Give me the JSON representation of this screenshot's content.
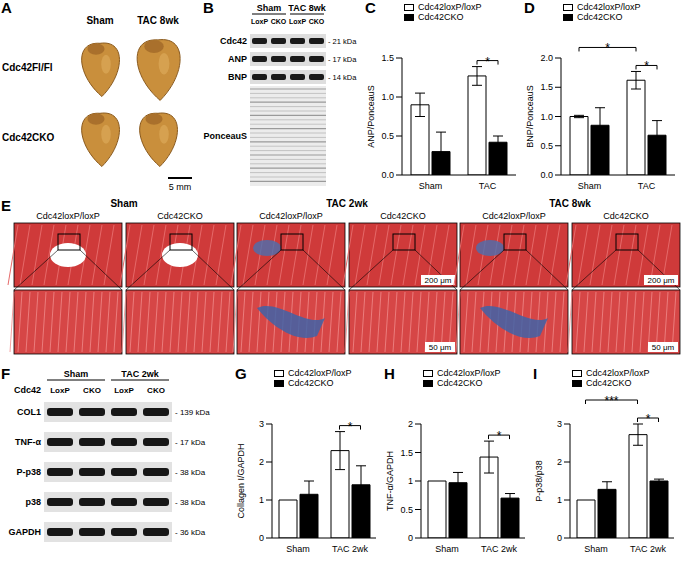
{
  "panels": {
    "A": {
      "panel": "A",
      "columns": [
        "Sham",
        "TAC 8wk"
      ],
      "rows": [
        "Cdc42Fl/Fl",
        "Cdc42CKO"
      ],
      "scale_bar": "5 mm"
    },
    "B": {
      "panel": "B",
      "groups": [
        "Sham",
        "TAC 8wk"
      ],
      "lanes": [
        "LoxP",
        "CKO",
        "LoxP",
        "CKO"
      ],
      "bands": [
        {
          "name": "Cdc42",
          "size": "- 21 kDa"
        },
        {
          "name": "ANP",
          "size": "- 17 kDa"
        },
        {
          "name": "BNP",
          "size": "- 14 kDa"
        },
        {
          "name": "PonceauS"
        }
      ]
    },
    "E": {
      "panel": "E",
      "groups": [
        {
          "title": "Sham",
          "columns": [
            "Cdc42loxP/loxP",
            "Cdc42CKO"
          ]
        },
        {
          "title": "TAC 2wk",
          "columns": [
            "Cdc42loxP/loxP",
            "Cdc42CKO"
          ],
          "scale_bars": [
            "200 μm",
            "50 μm"
          ]
        },
        {
          "title": "TAC 8wk",
          "columns": [
            "Cdc42loxP/loxP",
            "Cdc42CKO"
          ],
          "scale_bars": [
            "200 μm",
            "50 μm"
          ]
        }
      ]
    },
    "F": {
      "panel": "F",
      "row_label": "Cdc42",
      "groups": [
        "Sham",
        "TAC 2wk"
      ],
      "lanes": [
        "LoxP",
        "CKO",
        "LoxP",
        "CKO"
      ],
      "bands": [
        {
          "name": "COL1",
          "size": "- 139 kDa"
        },
        {
          "name": "TNF-α",
          "size": "- 17 kDa"
        },
        {
          "name": "P-p38",
          "size": "- 38 kDa"
        },
        {
          "name": "p38",
          "size": "- 38 kDa"
        },
        {
          "name": "GAPDH",
          "size": "- 36 kDa"
        }
      ]
    }
  },
  "chart_data": [
    {
      "panel": "C",
      "type": "bar",
      "ylabel": "ANP/PonceauS",
      "categories": [
        "Sham",
        "TAC"
      ],
      "series": [
        {
          "name": "Cdc42loxP/loxP",
          "color": "#ffffff",
          "values": [
            0.9,
            1.27
          ],
          "errors": [
            0.15,
            0.12
          ]
        },
        {
          "name": "Cdc42CKO",
          "color": "#000000",
          "values": [
            0.3,
            0.42
          ],
          "errors": [
            0.25,
            0.08
          ]
        }
      ],
      "ylim": [
        0,
        1.5
      ],
      "yticks": [
        {
          "value": 0,
          "label": "0.0"
        },
        0.5,
        {
          "value": 1,
          "label": "1.0"
        },
        1.5
      ],
      "legend": "top",
      "significance": [
        {
          "bars": [
            [
              1,
              0
            ],
            [
              1,
              1
            ]
          ],
          "label": "*"
        }
      ]
    },
    {
      "panel": "D",
      "type": "bar",
      "ylabel": "BNP/PonceauS",
      "categories": [
        "Sham",
        "TAC"
      ],
      "series": [
        {
          "name": "Cdc42loxP/loxP",
          "color": "#ffffff",
          "values": [
            1.0,
            1.62
          ],
          "errors": [
            0.02,
            0.15
          ]
        },
        {
          "name": "Cdc42CKO",
          "color": "#000000",
          "values": [
            0.85,
            0.68
          ],
          "errors": [
            0.3,
            0.25
          ]
        }
      ],
      "ylim": [
        0,
        2
      ],
      "yticks": [
        {
          "value": 0,
          "label": "0.0"
        },
        0.5,
        {
          "value": 1,
          "label": "1.0"
        },
        1.5,
        {
          "value": 2,
          "label": "2.0"
        }
      ],
      "legend": "top",
      "significance": [
        {
          "bars": [
            [
              0,
              0
            ],
            [
              1,
              0
            ]
          ],
          "label": "*"
        },
        {
          "bars": [
            [
              1,
              0
            ],
            [
              1,
              1
            ]
          ],
          "label": "*"
        }
      ]
    },
    {
      "panel": "G",
      "type": "bar",
      "ylabel": "Collagen I/GAPDH",
      "categories": [
        "Sham",
        "TAC 2wk"
      ],
      "series": [
        {
          "name": "Cdc42loxP/loxP",
          "color": "#ffffff",
          "values": [
            1.0,
            2.3
          ],
          "errors": [
            0,
            0.5
          ]
        },
        {
          "name": "Cdc42CKO",
          "color": "#000000",
          "values": [
            1.15,
            1.4
          ],
          "errors": [
            0.35,
            0.5
          ]
        }
      ],
      "ylim": [
        0,
        3
      ],
      "yticks": [
        0,
        1,
        2,
        3
      ],
      "legend": "top",
      "significance": [
        {
          "bars": [
            [
              1,
              0
            ],
            [
              1,
              1
            ]
          ],
          "label": "*"
        }
      ]
    },
    {
      "panel": "H",
      "type": "bar",
      "ylabel": "TNF-α/GAPDH",
      "categories": [
        "Sham",
        "TAC 2wk"
      ],
      "series": [
        {
          "name": "Cdc42loxP/loxP",
          "color": "#ffffff",
          "values": [
            1.0,
            1.42
          ],
          "errors": [
            0,
            0.28
          ]
        },
        {
          "name": "Cdc42CKO",
          "color": "#000000",
          "values": [
            0.97,
            0.7
          ],
          "errors": [
            0.18,
            0.08
          ]
        }
      ],
      "ylim": [
        0,
        2
      ],
      "yticks": [
        0,
        0.5,
        1,
        1.5,
        2
      ],
      "legend": "top",
      "significance": [
        {
          "bars": [
            [
              1,
              0
            ],
            [
              1,
              1
            ]
          ],
          "label": "*"
        }
      ]
    },
    {
      "panel": "I",
      "type": "bar",
      "ylabel": "P-p38/p38",
      "categories": [
        "Sham",
        "TAC 2wk"
      ],
      "series": [
        {
          "name": "Cdc42loxP/loxP",
          "color": "#ffffff",
          "values": [
            1.0,
            2.72
          ],
          "errors": [
            0,
            0.28
          ]
        },
        {
          "name": "Cdc42CKO",
          "color": "#000000",
          "values": [
            1.28,
            1.5
          ],
          "errors": [
            0.2,
            0.05
          ]
        }
      ],
      "ylim": [
        0,
        3
      ],
      "yticks": [
        0,
        1,
        2,
        3
      ],
      "legend": "top",
      "significance": [
        {
          "bars": [
            [
              0,
              0
            ],
            [
              1,
              0
            ]
          ],
          "label": "***"
        },
        {
          "bars": [
            [
              1,
              0
            ],
            [
              1,
              1
            ]
          ],
          "label": "*"
        }
      ]
    }
  ]
}
